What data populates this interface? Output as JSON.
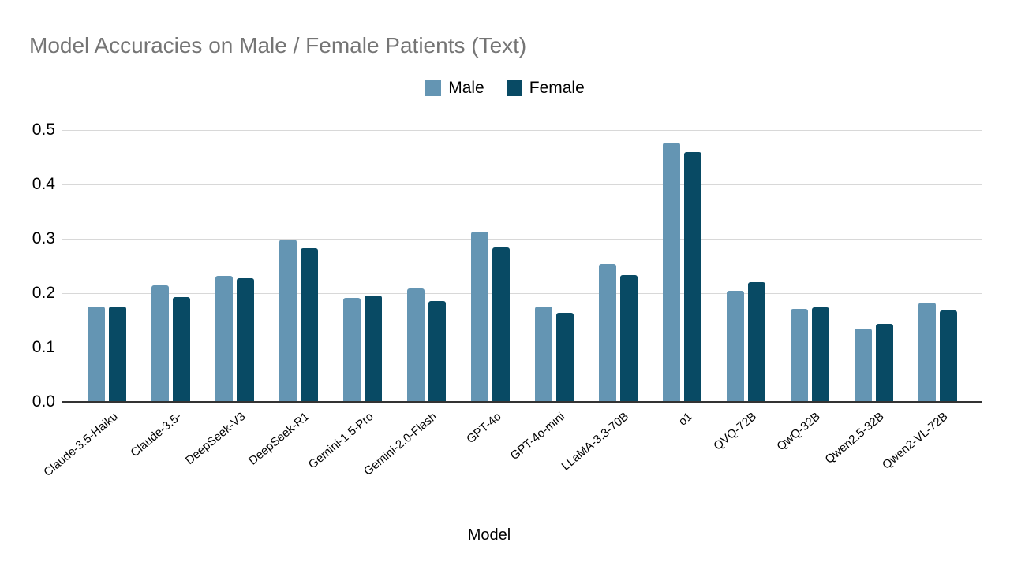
{
  "chart_data": {
    "type": "bar",
    "title": "Model Accuracies on Male / Female Patients (Text)",
    "xlabel": "Model",
    "ylabel": "",
    "ylim": [
      0,
      0.5
    ],
    "yticks": [
      0.0,
      0.1,
      0.2,
      0.3,
      0.4,
      0.5
    ],
    "grid": true,
    "legend_position": "top-center",
    "categories": [
      "Claude-3.5-Haiku",
      "Claude-3.5-",
      "DeepSeek-V3",
      "DeepSeek-R1",
      "Gemini-1.5-Pro",
      "Gemini-2.0-Flash",
      "GPT-4o",
      "GPT-4o-mini",
      "LLaMA-3.3-70B",
      "o1",
      "QVQ-72B",
      "QwQ-32B",
      "Qwen2.5-32B",
      "Qwen2-VL-72B"
    ],
    "series": [
      {
        "name": "Male",
        "color": "#6495B3",
        "values": [
          0.175,
          0.214,
          0.232,
          0.298,
          0.192,
          0.209,
          0.313,
          0.176,
          0.253,
          0.477,
          0.205,
          0.171,
          0.135,
          0.182
        ]
      },
      {
        "name": "Female",
        "color": "#084A64",
        "values": [
          0.175,
          0.193,
          0.227,
          0.283,
          0.195,
          0.185,
          0.284,
          0.164,
          0.234,
          0.46,
          0.22,
          0.174,
          0.144,
          0.168
        ]
      }
    ]
  },
  "colors": {
    "title_text": "#757575",
    "gridline": "#D8D8D8",
    "axis_line": "#333333",
    "tick_text": "#000000"
  }
}
